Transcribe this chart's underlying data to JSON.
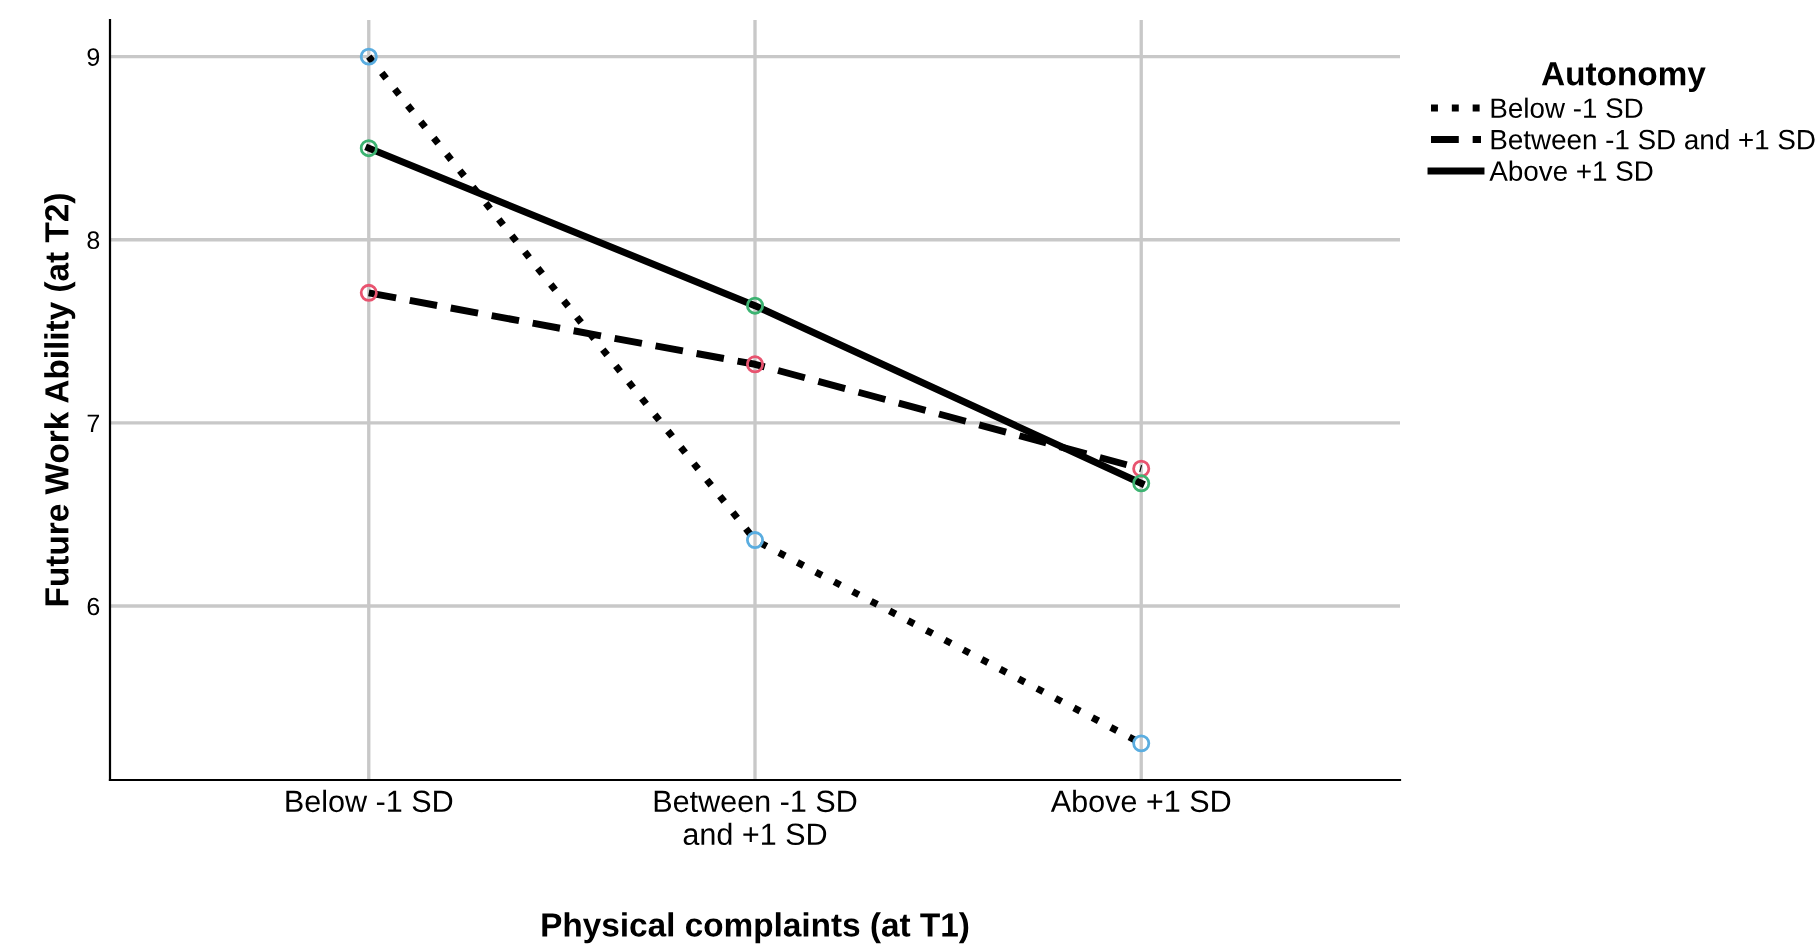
{
  "chart_data": {
    "type": "line",
    "xlabel": "Physical complaints (at T1)",
    "ylabel": "Future Work Ability (at T2)",
    "legend_title": "Autonomy",
    "categories": [
      "Below -1 SD",
      "Between -1 SD\nand +1 SD",
      "Above +1 SD"
    ],
    "series": [
      {
        "name": "Below -1 SD",
        "color": "#000000",
        "colors": [
          "#5aade0",
          "#5aade0",
          "#5aade0"
        ],
        "line_style": "dotted",
        "values": [
          9.0,
          6.36,
          5.25
        ]
      },
      {
        "name": "Between -1 SD and +1 SD",
        "color": "#000000",
        "colors": [
          "#e8536f",
          "#e8536f",
          "#e8536f"
        ],
        "line_style": "dashed",
        "values": [
          7.71,
          7.32,
          6.75
        ]
      },
      {
        "name": "Above +1 SD",
        "color": "#000000",
        "colors": [
          "#3cb371",
          "#3cb371",
          "#3cb371"
        ],
        "line_style": "solid",
        "values": [
          8.5,
          7.64,
          6.67
        ]
      }
    ],
    "ylim": [
      5.05,
      9.2
    ],
    "yticks": [
      6,
      7,
      8,
      9
    ],
    "grid": true,
    "legend": "right",
    "marker": "circle"
  }
}
